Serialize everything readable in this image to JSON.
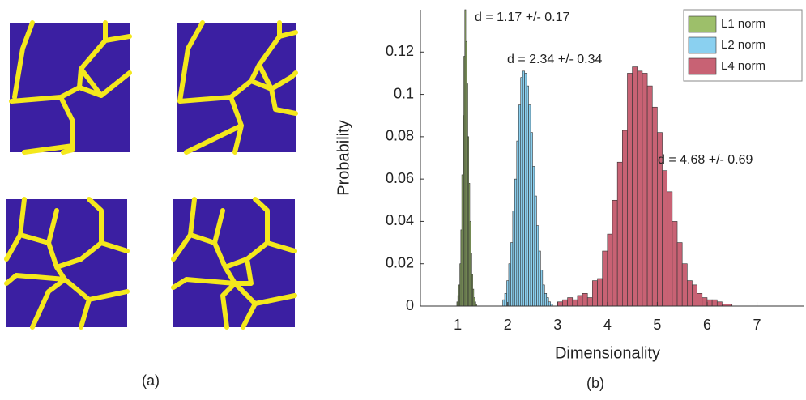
{
  "chart_data": {
    "type": "histogram",
    "xlabel": "Dimensionality",
    "ylabel": "Probability",
    "xlim": [
      0.25,
      7.95
    ],
    "ylim": [
      0,
      0.14
    ],
    "xticks": [
      1,
      2,
      3,
      4,
      5,
      6,
      7
    ],
    "yticks": [
      0,
      0.02,
      0.04,
      0.06,
      0.08,
      0.1,
      0.12
    ],
    "legend": "upper right",
    "annotations": [
      "d = 1.17 +/- 0.17",
      "d = 2.34 +/- 0.34",
      "d = 4.68 +/- 0.69"
    ],
    "series": [
      {
        "name": "L1 norm",
        "color": "#9dbf6a",
        "bins": [
          0.98,
          1.0,
          1.02,
          1.04,
          1.06,
          1.08,
          1.1,
          1.12,
          1.14,
          1.16,
          1.18,
          1.2,
          1.22,
          1.24,
          1.26,
          1.28,
          1.3,
          1.32,
          1.34,
          1.36,
          1.38
        ],
        "values": [
          0.002,
          0.005,
          0.01,
          0.02,
          0.036,
          0.062,
          0.09,
          0.118,
          0.14,
          0.125,
          0.105,
          0.08,
          0.058,
          0.04,
          0.025,
          0.015,
          0.008,
          0.004,
          0.002,
          0.001
        ]
      },
      {
        "name": "L2 norm",
        "color": "#8ad0f0",
        "bins": [
          1.9,
          1.94,
          1.98,
          2.02,
          2.06,
          2.1,
          2.14,
          2.18,
          2.22,
          2.26,
          2.3,
          2.34,
          2.38,
          2.42,
          2.46,
          2.5,
          2.54,
          2.58,
          2.62,
          2.66,
          2.7,
          2.74,
          2.78,
          2.82,
          2.86,
          2.9
        ],
        "values": [
          0.003,
          0.006,
          0.012,
          0.02,
          0.03,
          0.045,
          0.06,
          0.078,
          0.095,
          0.108,
          0.111,
          0.11,
          0.104,
          0.095,
          0.082,
          0.066,
          0.052,
          0.038,
          0.026,
          0.017,
          0.01,
          0.006,
          0.004,
          0.002,
          0.001
        ]
      },
      {
        "name": "L4 norm",
        "color": "#c86274",
        "bins": [
          3.0,
          3.1,
          3.2,
          3.3,
          3.4,
          3.5,
          3.6,
          3.7,
          3.8,
          3.9,
          4.0,
          4.1,
          4.2,
          4.3,
          4.4,
          4.5,
          4.6,
          4.7,
          4.8,
          4.9,
          5.0,
          5.1,
          5.2,
          5.3,
          5.4,
          5.5,
          5.6,
          5.7,
          5.8,
          5.9,
          6.0,
          6.1,
          6.2,
          6.3,
          6.4,
          6.5
        ],
        "values": [
          0.002,
          0.003,
          0.004,
          0.003,
          0.005,
          0.006,
          0.004,
          0.012,
          0.013,
          0.026,
          0.034,
          0.05,
          0.068,
          0.083,
          0.11,
          0.113,
          0.111,
          0.11,
          0.104,
          0.094,
          0.082,
          0.064,
          0.054,
          0.04,
          0.03,
          0.02,
          0.012,
          0.01,
          0.006,
          0.004,
          0.003,
          0.003,
          0.002,
          0.001,
          0.001
        ]
      }
    ]
  },
  "panels": {
    "a": "(a)",
    "b": "(b)"
  }
}
